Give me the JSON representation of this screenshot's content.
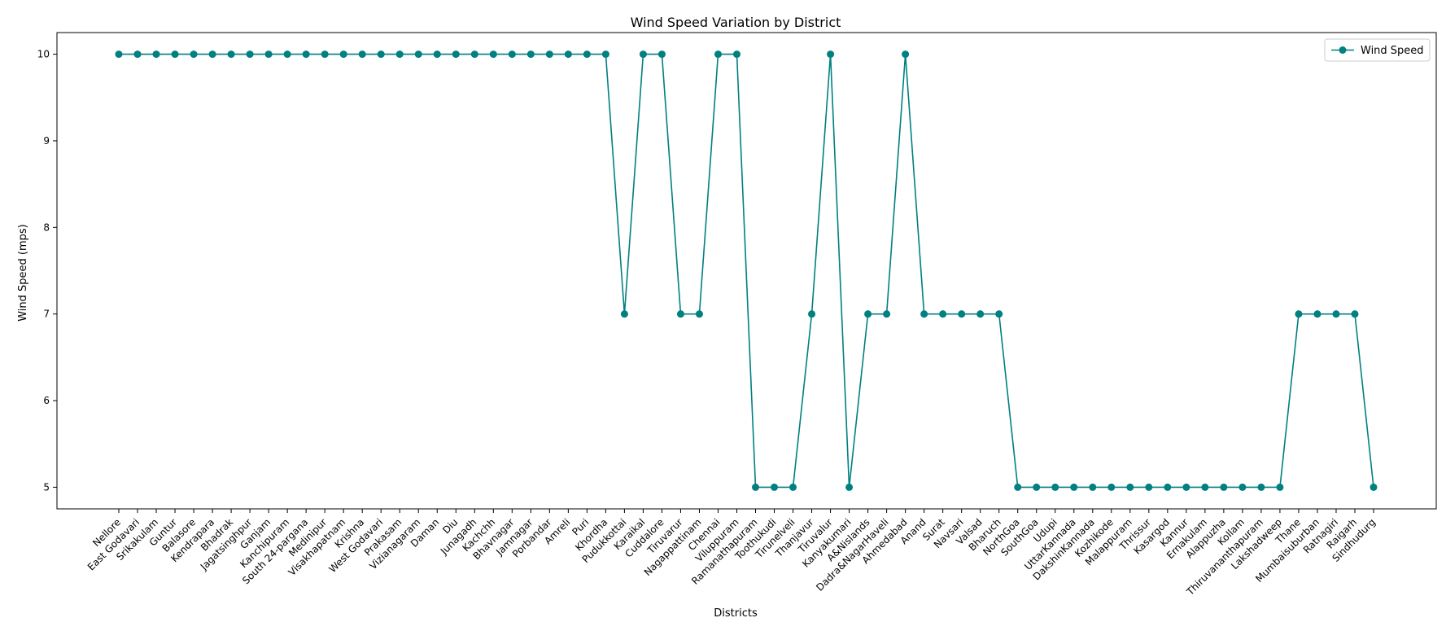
{
  "chart_data": {
    "type": "line",
    "title": "Wind Speed Variation by District",
    "xlabel": "Districts",
    "ylabel": "Wind Speed (mps)",
    "ylim": [
      4.75,
      10.25
    ],
    "yticks": [
      5,
      6,
      7,
      8,
      9,
      10
    ],
    "grid": false,
    "legend_position": "top-right",
    "color": "#008080",
    "categories": [
      "Nellore",
      "East Godavari",
      "Srikakulam",
      "Guntur",
      "Balasore",
      "Kendrapara",
      "Bhadrak",
      "Jagatsinghpur",
      "Ganjam",
      "Kanchipuram",
      "South 24-pargana",
      "Medinipur",
      "Visakhapatnam",
      "Krishna",
      "West Godavari",
      "Prakasam",
      "Vizianagaram",
      "Daman",
      "Diu",
      "Junagadh",
      "Kachchh",
      "Bhavnagar",
      "Jamnagar",
      "Porbandar",
      "Amreli",
      "Puri",
      "Khordha",
      "Pudukkottai",
      "Karaikal",
      "Cuddalore",
      "Tiruvarur",
      "Nagappattinam",
      "Chennai",
      "Viluppuram",
      "Ramanathapuram",
      "Toothukudi",
      "Tirunelveli",
      "Thanjavur",
      "Tiruvalur",
      "Kanyakumari",
      "A&Nislands",
      "Dadra&NagarHaveli",
      "Ahmedabad",
      "Anand",
      "Surat",
      "Navsari",
      "Valsad",
      "Bharuch",
      "NorthGoa",
      "SouthGoa",
      "Udupi",
      "UttarKannada",
      "DakshinKannada",
      "Kozhikode",
      "Malappuram",
      "Thrissur",
      "Kasargod",
      "Kannur",
      "Ernakulam",
      "Alappuzha",
      "Kollam",
      "Thiruvananthapuram",
      "Lakshadweep",
      "Thane",
      "Mumbaisuburban",
      "Ratnagiri",
      "Raigarh",
      "Sindhudurg"
    ],
    "series": [
      {
        "name": "Wind Speed",
        "values": [
          10,
          10,
          10,
          10,
          10,
          10,
          10,
          10,
          10,
          10,
          10,
          10,
          10,
          10,
          10,
          10,
          10,
          10,
          10,
          10,
          10,
          10,
          10,
          10,
          10,
          10,
          10,
          7,
          10,
          10,
          7,
          7,
          10,
          10,
          5,
          5,
          5,
          7,
          10,
          5,
          7,
          7,
          10,
          7,
          7,
          7,
          7,
          7,
          5,
          5,
          5,
          5,
          5,
          5,
          5,
          5,
          5,
          5,
          5,
          5,
          5,
          5,
          5,
          7,
          7,
          7,
          7,
          5
        ]
      }
    ]
  }
}
